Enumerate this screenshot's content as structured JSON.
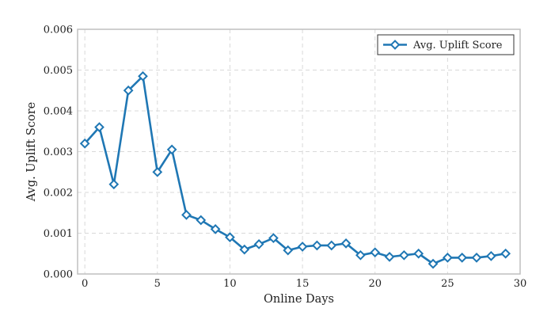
{
  "chart_data": {
    "type": "line",
    "title": "",
    "xlabel": "Online Days",
    "ylabel": "Avg. Uplift Score",
    "xlim": [
      -0.5,
      30
    ],
    "ylim": [
      0,
      0.006
    ],
    "x_ticks": [
      0,
      5,
      10,
      15,
      20,
      25,
      30
    ],
    "y_ticks": [
      0.0,
      0.001,
      0.002,
      0.003,
      0.004,
      0.005,
      0.006
    ],
    "y_tick_labels": [
      "0.000",
      "0.001",
      "0.002",
      "0.003",
      "0.004",
      "0.005",
      "0.006"
    ],
    "grid": true,
    "legend_position": "top-right",
    "series": [
      {
        "name": "Avg. Uplift Score",
        "color": "#1f77b4",
        "marker": "diamond",
        "x": [
          0,
          1,
          2,
          3,
          4,
          5,
          6,
          7,
          8,
          9,
          10,
          11,
          12,
          13,
          14,
          15,
          16,
          17,
          18,
          19,
          20,
          21,
          22,
          23,
          24,
          25,
          26,
          27,
          28,
          29
        ],
        "y": [
          0.0032,
          0.0036,
          0.0022,
          0.0045,
          0.00485,
          0.0025,
          0.00305,
          0.00145,
          0.00132,
          0.0011,
          0.0009,
          0.0006,
          0.00073,
          0.00088,
          0.00058,
          0.00067,
          0.0007,
          0.0007,
          0.00075,
          0.00046,
          0.00053,
          0.00042,
          0.00046,
          0.0005,
          0.00025,
          0.0004,
          0.0004,
          0.0004,
          0.00044,
          0.0005
        ]
      }
    ]
  }
}
